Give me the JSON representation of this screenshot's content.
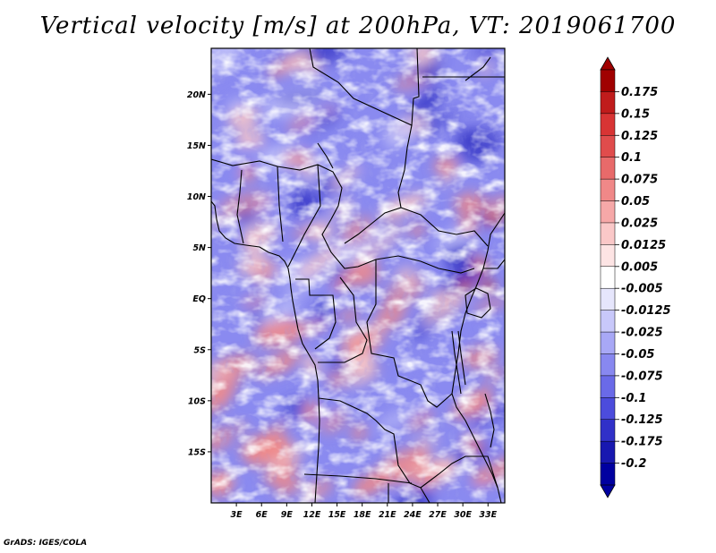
{
  "title": "Vertical velocity [m/s] at 200hPa, VT: 2019061700",
  "credit": "GrADS: IGES/COLA",
  "map": {
    "lat_labels": [
      "20N",
      "15N",
      "10N",
      "5N",
      "EQ",
      "5S",
      "10S",
      "15S"
    ],
    "lon_labels": [
      "3E",
      "6E",
      "9E",
      "12E",
      "15E",
      "18E",
      "21E",
      "24E",
      "27E",
      "30E",
      "33E"
    ],
    "lon_range": [
      0,
      35
    ],
    "lat_range": [
      -20,
      24.5
    ],
    "field_colors": {
      "strong_negative": "#3a3ac8",
      "negative": "#8a8af0",
      "weak_negative": "#c8c8fa",
      "near_zero": "#ffffff",
      "weak_positive": "#fac8c8",
      "positive": "#f08a8a",
      "strong_positive": "#c83a3a"
    }
  },
  "colorbar": {
    "labels": [
      "0.175",
      "0.15",
      "0.125",
      "0.1",
      "0.075",
      "0.05",
      "0.025",
      "0.0125",
      "0.005",
      "-0.005",
      "-0.0125",
      "-0.025",
      "-0.05",
      "-0.075",
      "-0.1",
      "-0.125",
      "-0.175",
      "-0.2"
    ],
    "colors": [
      "#a00000",
      "#c01c1c",
      "#d83434",
      "#e04c4c",
      "#e86a6a",
      "#f08888",
      "#f6a8a8",
      "#fac8c8",
      "#fde4e4",
      "#ffffff",
      "#e6e6fc",
      "#c8c8fa",
      "#a8a8f6",
      "#8888f0",
      "#6a6ae8",
      "#4c4cdc",
      "#3030c8",
      "#1818b0",
      "#0000a0"
    ]
  }
}
